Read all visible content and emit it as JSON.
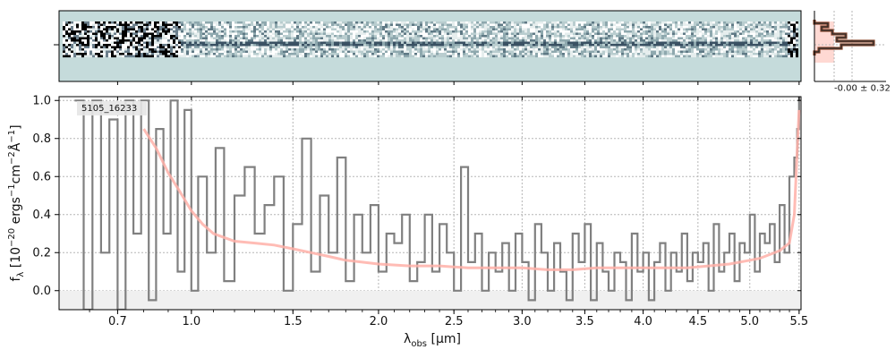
{
  "chart_data": {
    "type": "line",
    "object_label": "5105_16233",
    "xlabel": "λobs [μm]",
    "ylabel": "fλ [10⁻²⁰ ergs⁻¹cm⁻²Å⁻¹]",
    "x_scale": "sqrt",
    "xlim": [
      0.5,
      5.52
    ],
    "ylim": [
      -0.1,
      1.02
    ],
    "x_ticks": [
      "0.7",
      "1.0",
      "1.5",
      "2.0",
      "2.5",
      "3.0",
      "3.5",
      "4.0",
      "4.5",
      "5.0",
      "5.5"
    ],
    "x_tick_values": [
      0.7,
      1.0,
      1.5,
      2.0,
      2.5,
      3.0,
      3.5,
      4.0,
      4.5,
      5.0,
      5.5
    ],
    "y_ticks": [
      "0.0",
      "0.2",
      "0.4",
      "0.6",
      "0.8",
      "1.0"
    ],
    "y_tick_values": [
      0.0,
      0.2,
      0.4,
      0.6,
      0.8,
      1.0
    ],
    "grid": true,
    "series": [
      {
        "role": "spectrum",
        "color": "#808080",
        "x": [
          0.55,
          0.58,
          0.61,
          0.64,
          0.67,
          0.7,
          0.73,
          0.76,
          0.79,
          0.82,
          0.85,
          0.88,
          0.91,
          0.94,
          0.97,
          1.0,
          1.03,
          1.07,
          1.11,
          1.15,
          1.2,
          1.25,
          1.3,
          1.35,
          1.4,
          1.45,
          1.5,
          1.55,
          1.6,
          1.65,
          1.7,
          1.75,
          1.8,
          1.85,
          1.9,
          1.95,
          2.0,
          2.05,
          2.1,
          2.15,
          2.2,
          2.25,
          2.3,
          2.35,
          2.4,
          2.45,
          2.5,
          2.55,
          2.6,
          2.65,
          2.7,
          2.75,
          2.8,
          2.85,
          2.9,
          2.95,
          3.0,
          3.05,
          3.1,
          3.15,
          3.2,
          3.25,
          3.3,
          3.35,
          3.4,
          3.45,
          3.5,
          3.55,
          3.6,
          3.65,
          3.7,
          3.75,
          3.8,
          3.85,
          3.9,
          3.95,
          4.0,
          4.05,
          4.1,
          4.15,
          4.2,
          4.25,
          4.3,
          4.35,
          4.4,
          4.45,
          4.5,
          4.55,
          4.6,
          4.65,
          4.7,
          4.75,
          4.8,
          4.85,
          4.9,
          4.95,
          5.0,
          5.05,
          5.1,
          5.15,
          5.2,
          5.25,
          5.3,
          5.35,
          5.4,
          5.45,
          5.48,
          5.5
        ],
        "y": [
          1.0,
          -0.1,
          1.0,
          0.2,
          0.9,
          -0.1,
          1.0,
          0.3,
          1.0,
          -0.05,
          0.85,
          0.3,
          1.0,
          0.1,
          0.95,
          0.0,
          0.6,
          0.2,
          0.75,
          0.05,
          0.5,
          0.65,
          0.3,
          0.45,
          0.6,
          0.0,
          0.35,
          0.8,
          0.1,
          0.5,
          0.2,
          0.7,
          0.05,
          0.4,
          0.2,
          0.45,
          0.1,
          0.3,
          0.25,
          0.4,
          0.05,
          0.15,
          0.4,
          0.1,
          0.35,
          0.2,
          0.0,
          0.65,
          0.15,
          0.3,
          0.0,
          0.2,
          0.1,
          0.25,
          0.0,
          0.3,
          0.15,
          -0.05,
          0.35,
          0.2,
          0.0,
          0.25,
          0.1,
          -0.05,
          0.3,
          0.15,
          0.35,
          -0.05,
          0.25,
          0.1,
          0.0,
          0.2,
          0.15,
          -0.05,
          0.3,
          0.1,
          0.2,
          -0.05,
          0.15,
          0.25,
          0.0,
          0.2,
          0.1,
          0.3,
          0.05,
          0.2,
          0.15,
          0.25,
          0.0,
          0.35,
          0.1,
          0.2,
          0.3,
          0.05,
          0.25,
          0.2,
          0.4,
          0.1,
          0.3,
          0.25,
          0.35,
          0.15,
          0.45,
          0.2,
          0.6,
          0.7,
          0.85,
          1.02
        ]
      },
      {
        "role": "model",
        "color": "#ffb0a8",
        "x": [
          0.8,
          0.85,
          0.9,
          0.95,
          1.0,
          1.05,
          1.1,
          1.2,
          1.3,
          1.4,
          1.5,
          1.6,
          1.7,
          1.8,
          1.9,
          2.0,
          2.2,
          2.4,
          2.6,
          2.8,
          3.0,
          3.2,
          3.4,
          3.6,
          3.8,
          4.0,
          4.2,
          4.4,
          4.6,
          4.8,
          5.0,
          5.1,
          5.2,
          5.3,
          5.4,
          5.45,
          5.5
        ],
        "y": [
          0.85,
          0.75,
          0.62,
          0.52,
          0.42,
          0.35,
          0.3,
          0.26,
          0.25,
          0.24,
          0.22,
          0.2,
          0.18,
          0.16,
          0.15,
          0.14,
          0.13,
          0.13,
          0.12,
          0.12,
          0.12,
          0.11,
          0.11,
          0.12,
          0.12,
          0.12,
          0.12,
          0.12,
          0.13,
          0.14,
          0.16,
          0.17,
          0.19,
          0.21,
          0.25,
          0.4,
          0.95
        ]
      }
    ]
  },
  "inset": {
    "annotation": "-0.00 ± 0.32"
  }
}
